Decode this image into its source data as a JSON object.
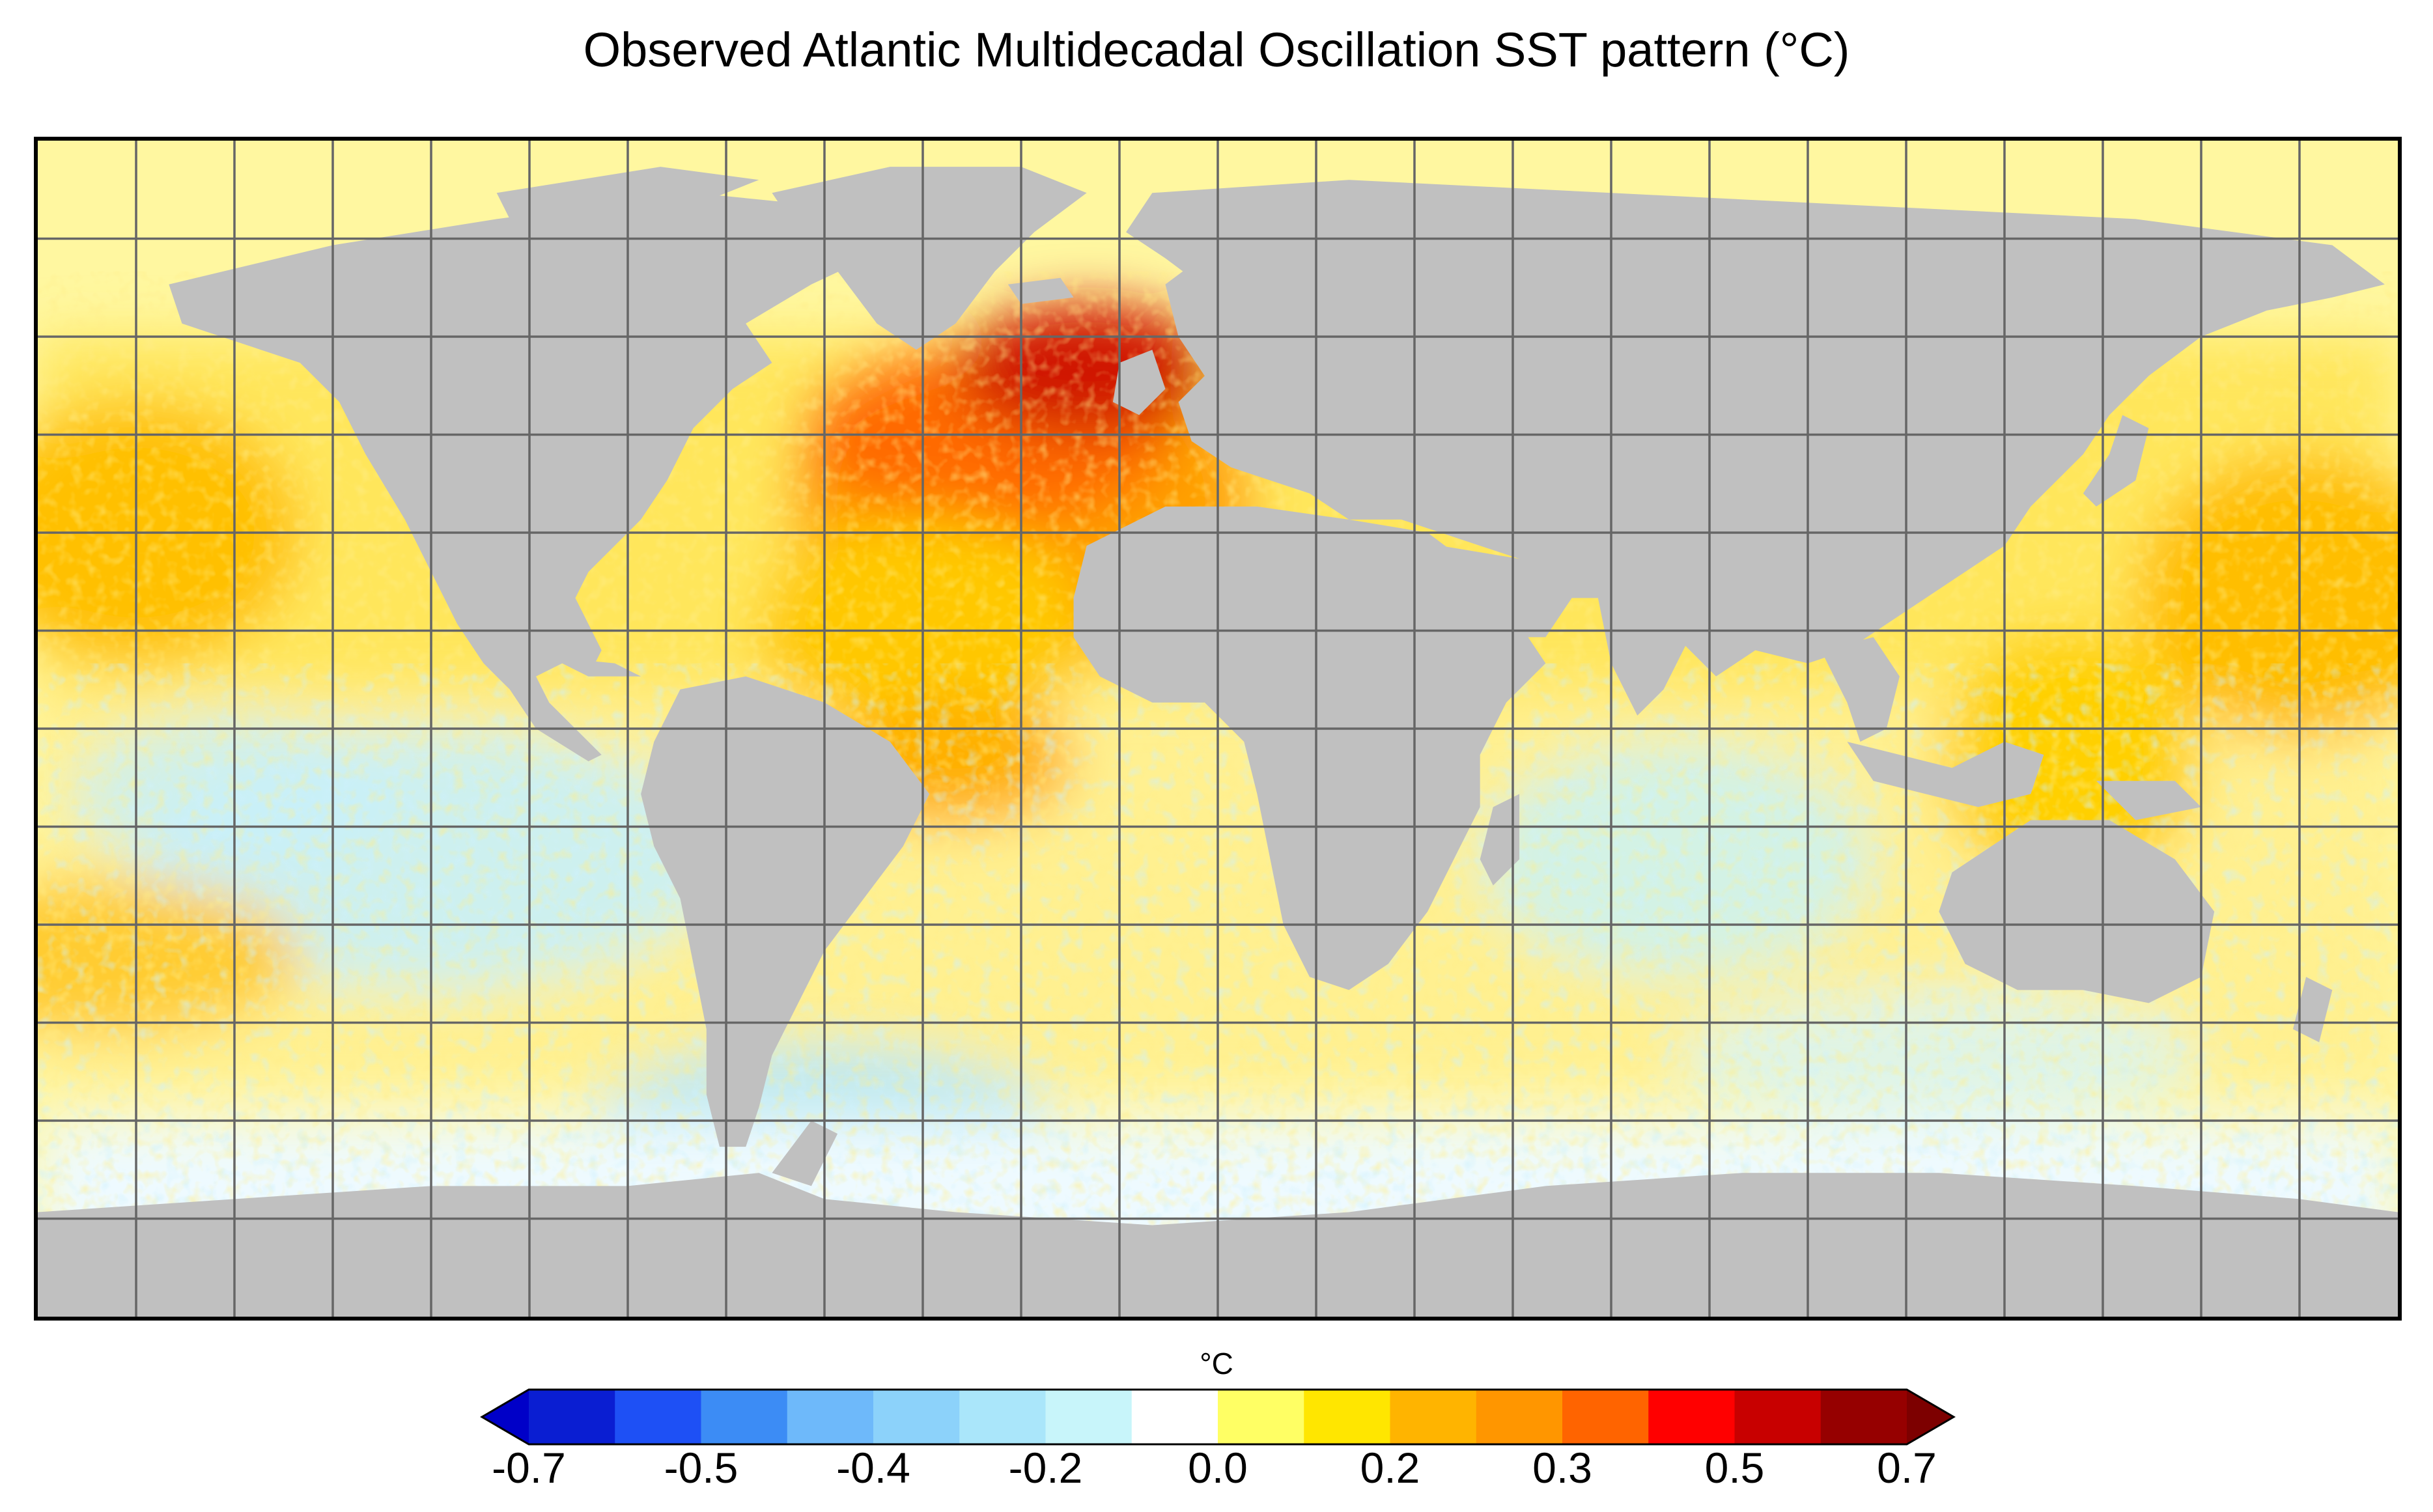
{
  "title": "Observed Atlantic Multidecadal Oscillation SST pattern (°C)",
  "colorbar": {
    "unit": "°C",
    "tick_labels": [
      "-0.7",
      "-0.5",
      "-0.4",
      "-0.2",
      "0.0",
      "0.2",
      "0.3",
      "0.5",
      "0.7"
    ],
    "colors": [
      "#0a1ed2",
      "#1e50f5",
      "#3c8cf5",
      "#6eb9fa",
      "#8cd2fa",
      "#aae6fa",
      "#c8f5fa",
      "#ffffff",
      "#ffff64",
      "#ffe600",
      "#ffb400",
      "#ff9600",
      "#ff6400",
      "#ff0000",
      "#c80000",
      "#960000"
    ],
    "under_color": "#0000c8",
    "over_color": "#7d0000",
    "extend": "both"
  },
  "map": {
    "projection": "equirectangular",
    "land_color": "#c0c0c0",
    "ocean_nodata_color": "#ffffff",
    "grid_lines": true,
    "grid_color": "#666666"
  }
}
